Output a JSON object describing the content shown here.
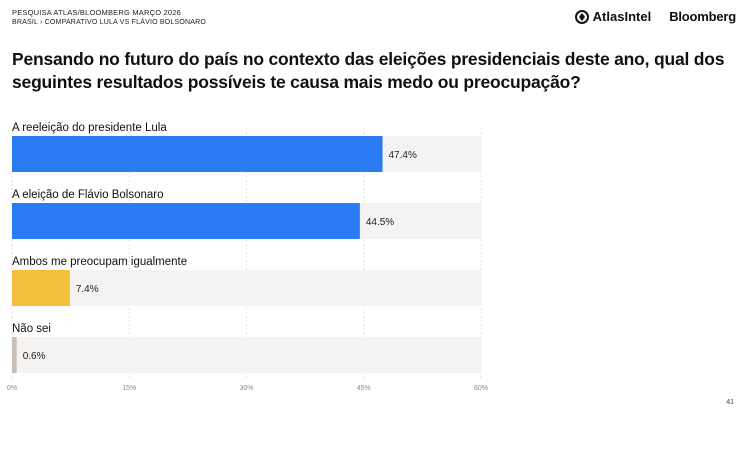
{
  "header": {
    "survey_title": "PESQUISA ATLAS/BLOOMBERG MARÇO 2026",
    "subtitle": "BRASIL › COMPARATIVO LULA VS FLÁVIO BOLSONARO",
    "brand_atlas": "AtlasIntel",
    "brand_bloomberg": "Bloomberg"
  },
  "question": "Pensando no futuro do país no contexto das eleições presidenciais deste ano, qual dos seguintes resultados possíveis te causa mais medo ou preocupação?",
  "page_number": "41",
  "colors": {
    "blue": "#2b7bf2",
    "yellow": "#f5bf3e",
    "gray": "#c8bfb8",
    "track": "#f4f3f1"
  },
  "chart_data": {
    "type": "bar",
    "orientation": "horizontal",
    "categories": [
      "A reeleição do presidente Lula",
      "A eleição de Flávio Bolsonaro",
      "Ambos me preocupam igualmente",
      "Não sei"
    ],
    "values": [
      47.4,
      44.5,
      7.4,
      0.6
    ],
    "value_labels": [
      "47.4%",
      "44.5%",
      "7.4%",
      "0.6%"
    ],
    "bar_colors": [
      "#2b7bf2",
      "#2b7bf2",
      "#f5bf3e",
      "#c8bfb8"
    ],
    "xlim": [
      0,
      60
    ],
    "x_ticks": [
      0,
      15,
      30,
      45,
      60
    ],
    "x_tick_labels": [
      "0%",
      "15%",
      "30%",
      "45%",
      "60%"
    ],
    "grid": true
  }
}
